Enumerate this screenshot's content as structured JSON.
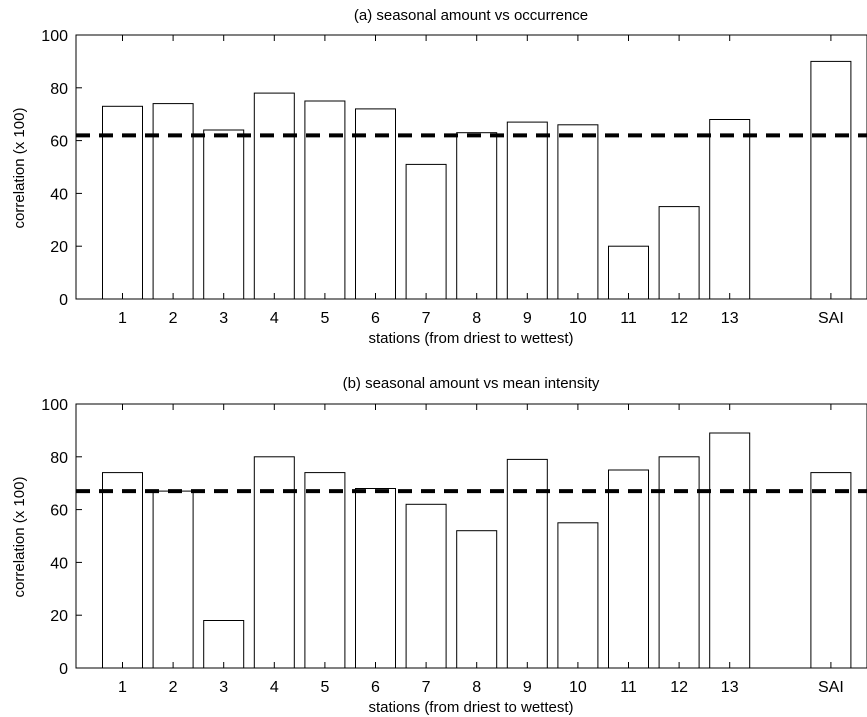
{
  "chart_data": [
    {
      "type": "bar",
      "title": "(a) seasonal amount vs occurrence",
      "xlabel": "stations (from driest to wettest)",
      "ylabel": "correlation (x 100)",
      "categories": [
        "1",
        "2",
        "3",
        "4",
        "5",
        "6",
        "7",
        "8",
        "9",
        "10",
        "11",
        "12",
        "13",
        "SAI"
      ],
      "values": [
        73,
        74,
        64,
        78,
        75,
        72,
        51,
        63,
        67,
        66,
        20,
        35,
        68,
        90
      ],
      "ylim": [
        0,
        100
      ],
      "yticks": [
        0,
        20,
        40,
        60,
        80,
        100
      ],
      "reference_line": {
        "value": 62,
        "style": "dashed"
      },
      "grid": false
    },
    {
      "type": "bar",
      "title": "(b) seasonal amount vs mean intensity",
      "xlabel": "stations (from driest to wettest)",
      "ylabel": "correlation (x 100)",
      "categories": [
        "1",
        "2",
        "3",
        "4",
        "5",
        "6",
        "7",
        "8",
        "9",
        "10",
        "11",
        "12",
        "13",
        "SAI"
      ],
      "values": [
        74,
        67,
        18,
        80,
        74,
        68,
        62,
        52,
        79,
        55,
        75,
        80,
        89,
        74
      ],
      "ylim": [
        0,
        100
      ],
      "yticks": [
        0,
        20,
        40,
        60,
        80,
        100
      ],
      "reference_line": {
        "value": 67,
        "style": "dashed"
      },
      "grid": false
    }
  ]
}
